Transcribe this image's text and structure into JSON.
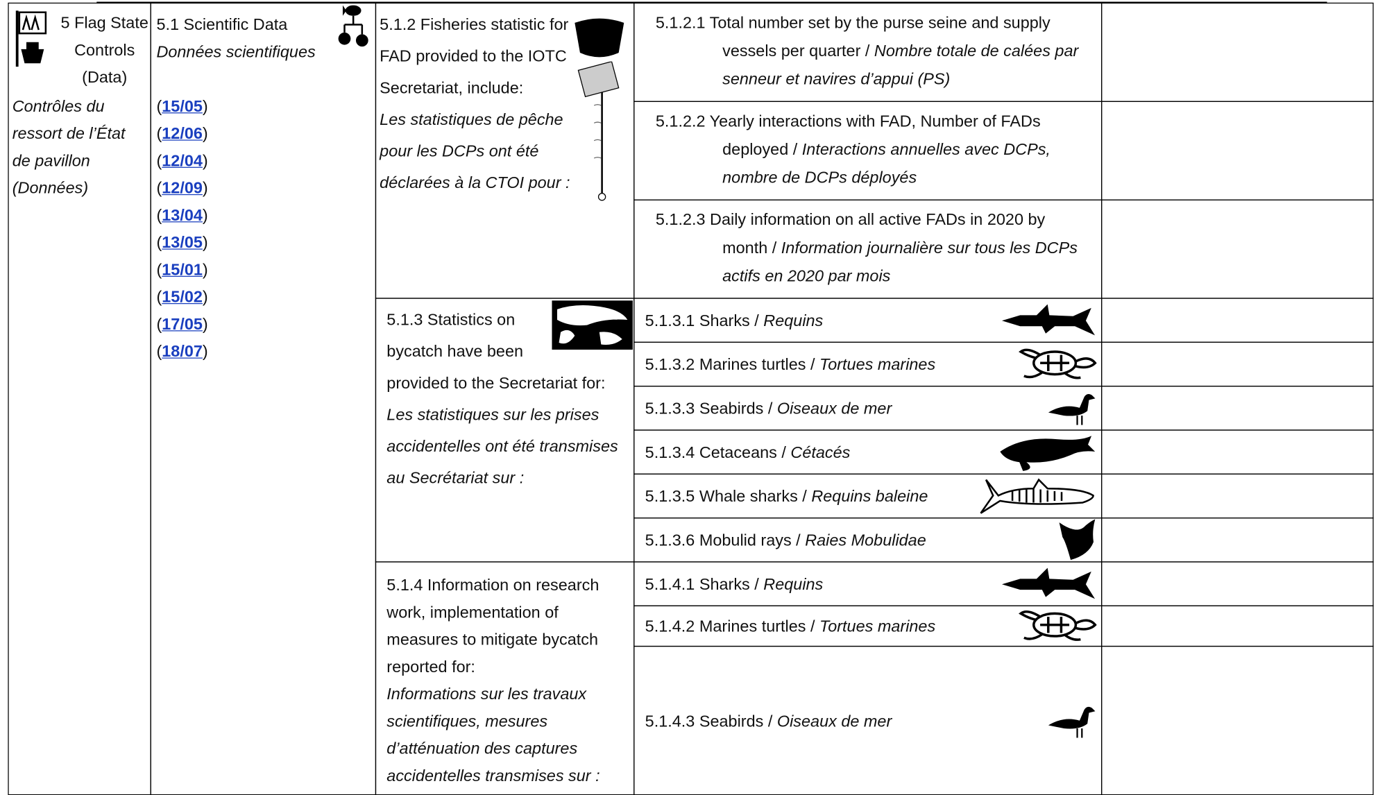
{
  "section": {
    "title_en": "5 Flag State Controls (Data)",
    "title_fr": "Contrôles du ressort de l’État de pavillon (Données)"
  },
  "subsection": {
    "title_en": "5.1 Scientific Data",
    "title_fr": "Données scientifiques",
    "references": [
      {
        "open": "(",
        "code": "15/05",
        "close": ")"
      },
      {
        "open": "(",
        "code": "12/06",
        "close": ")"
      },
      {
        "open": "(",
        "code": "12/04",
        "close": ")"
      },
      {
        "open": "(",
        "code": "12/09",
        "close": ")"
      },
      {
        "open": "(",
        "code": "13/04",
        "close": ")"
      },
      {
        "open": "(",
        "code": "13/05",
        "close": ")"
      },
      {
        "open": "(",
        "code": "15/01",
        "close": ")"
      },
      {
        "open": "(",
        "code": "15/02",
        "close": ")"
      },
      {
        "open": "(",
        "code": "17/05",
        "close": ")"
      },
      {
        "open": "(",
        "code": "18/07",
        "close": ")"
      }
    ]
  },
  "groups": [
    {
      "title_en": "5.1.2 Fisheries statistic for FAD provided to the IOTC Secretariat, include:",
      "title_fr": "Les statistiques de pêche pour les DCPs ont été déclarées à la CTOI pour :",
      "items": [
        {
          "number": "5.1.2.1",
          "text_en": "Total number set by the purse seine and supply vessels per quarter /",
          "text_fr": "Nombre totale de calées par senneur et navires d’appui (PS)"
        },
        {
          "number": "5.1.2.2",
          "text_en": "Yearly interactions with FAD, Number of FADs deployed /",
          "text_fr": "Interactions annuelles avec DCPs, nombre de DCPs déployés"
        },
        {
          "number": "5.1.2.3",
          "text_en": "Daily information on all active FADs in 2020 by month /",
          "text_fr": "Information journalière sur tous les DCPs actifs en 2020 par mois"
        }
      ]
    },
    {
      "title_en": "5.1.3 Statistics on bycatch have been provided to the Secretariat for:",
      "title_fr": "Les statistiques sur les prises accidentelles ont été transmises au Secrétariat sur :",
      "items": [
        {
          "number": "5.1.3.1",
          "text_en": "Sharks /",
          "text_fr": "Requins"
        },
        {
          "number": "5.1.3.2",
          "text_en": "Marines turtles /",
          "text_fr": "Tortues marines"
        },
        {
          "number": "5.1.3.3",
          "text_en": "Seabirds /",
          "text_fr": "Oiseaux de mer"
        },
        {
          "number": "5.1.3.4",
          "text_en": "Cetaceans /",
          "text_fr": "Cétacés"
        },
        {
          "number": "5.1.3.5",
          "text_en": "Whale sharks /",
          "text_fr": "Requins baleine"
        },
        {
          "number": "5.1.3.6",
          "text_en": "Mobulid rays /",
          "text_fr": "Raies Mobulidae"
        }
      ]
    },
    {
      "title_en": "5.1.4 Information on research work, implementation of measures to mitigate bycatch reported for:",
      "title_fr": "Informations sur les travaux scientifiques, mesures d’atténuation des captures accidentelles transmises sur :",
      "items": [
        {
          "number": "5.1.4.1",
          "text_en": "Sharks /",
          "text_fr": "Requins"
        },
        {
          "number": "5.1.4.2",
          "text_en": "Marines turtles /",
          "text_fr": "Tortues marines"
        },
        {
          "number": "5.1.4.3",
          "text_en": "Seabirds /",
          "text_fr": "Oiseaux de mer"
        }
      ]
    }
  ]
}
